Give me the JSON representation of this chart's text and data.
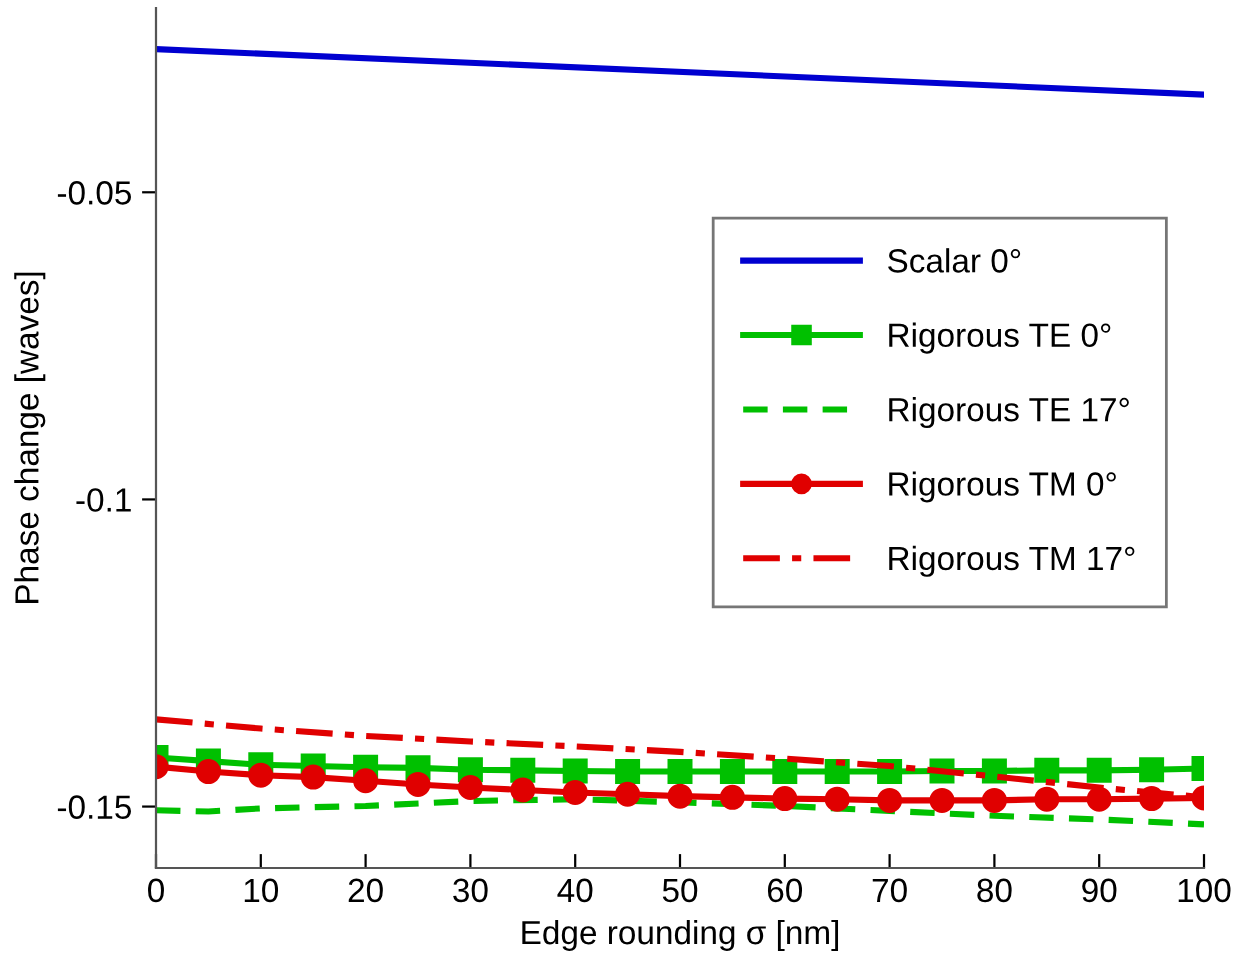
{
  "chart_data": {
    "type": "line",
    "xlabel": "Edge rounding σ [nm]",
    "ylabel": "Phase change [waves]",
    "xlim": [
      0,
      100
    ],
    "xticks": [
      0,
      10,
      20,
      30,
      40,
      50,
      60,
      70,
      80,
      90,
      100
    ],
    "ylim": [
      -0.16,
      -0.02
    ],
    "yticks": [
      -0.15,
      -0.1,
      -0.05
    ],
    "grid": false,
    "legend": "right",
    "series": [
      {
        "name": "Scalar 0°",
        "color": "#0000d0",
        "marker": "none",
        "line_style": "solid",
        "x": [
          0,
          100
        ],
        "values": [
          -0.0267,
          -0.0341
        ]
      },
      {
        "name": "Rigorous TE 0°",
        "color": "#00c000",
        "marker": "square",
        "line_style": "solid",
        "x": [
          0,
          5,
          10,
          15,
          20,
          25,
          30,
          35,
          40,
          45,
          50,
          55,
          60,
          65,
          70,
          75,
          80,
          85,
          90,
          95,
          100
        ],
        "values": [
          -0.142,
          -0.1426,
          -0.1432,
          -0.1434,
          -0.1436,
          -0.1437,
          -0.144,
          -0.1441,
          -0.1442,
          -0.1443,
          -0.1443,
          -0.1443,
          -0.1443,
          -0.1443,
          -0.1443,
          -0.1442,
          -0.1442,
          -0.1441,
          -0.1441,
          -0.144,
          -0.1438
        ]
      },
      {
        "name": "Rigorous TE 17°",
        "color": "#00c000",
        "marker": "none",
        "line_style": "dashed",
        "x": [
          0,
          5,
          10,
          20,
          30,
          40,
          50,
          60,
          70,
          80,
          90,
          100
        ],
        "values": [
          -0.1506,
          -0.1508,
          -0.1503,
          -0.1499,
          -0.1491,
          -0.1488,
          -0.1493,
          -0.1499,
          -0.1507,
          -0.1515,
          -0.1521,
          -0.1529
        ]
      },
      {
        "name": "Rigorous TM 0°",
        "color": "#e00000",
        "marker": "circle",
        "line_style": "solid",
        "x": [
          0,
          5,
          10,
          15,
          20,
          25,
          30,
          35,
          40,
          45,
          50,
          55,
          60,
          65,
          70,
          75,
          80,
          85,
          90,
          95,
          100
        ],
        "values": [
          -0.1435,
          -0.1443,
          -0.1449,
          -0.1452,
          -0.1458,
          -0.1464,
          -0.1469,
          -0.1473,
          -0.1477,
          -0.148,
          -0.1483,
          -0.1485,
          -0.1487,
          -0.1488,
          -0.149,
          -0.149,
          -0.149,
          -0.1488,
          -0.1488,
          -0.1487,
          -0.1486
        ]
      },
      {
        "name": "Rigorous TM 17°",
        "color": "#e00000",
        "marker": "none",
        "line_style": "dashdot",
        "x": [
          0,
          10,
          20,
          30,
          40,
          50,
          60,
          70,
          80,
          90,
          100
        ],
        "values": [
          -0.1358,
          -0.1373,
          -0.1385,
          -0.1394,
          -0.1402,
          -0.1411,
          -0.1422,
          -0.1434,
          -0.1451,
          -0.1469,
          -0.1485
        ]
      }
    ]
  }
}
